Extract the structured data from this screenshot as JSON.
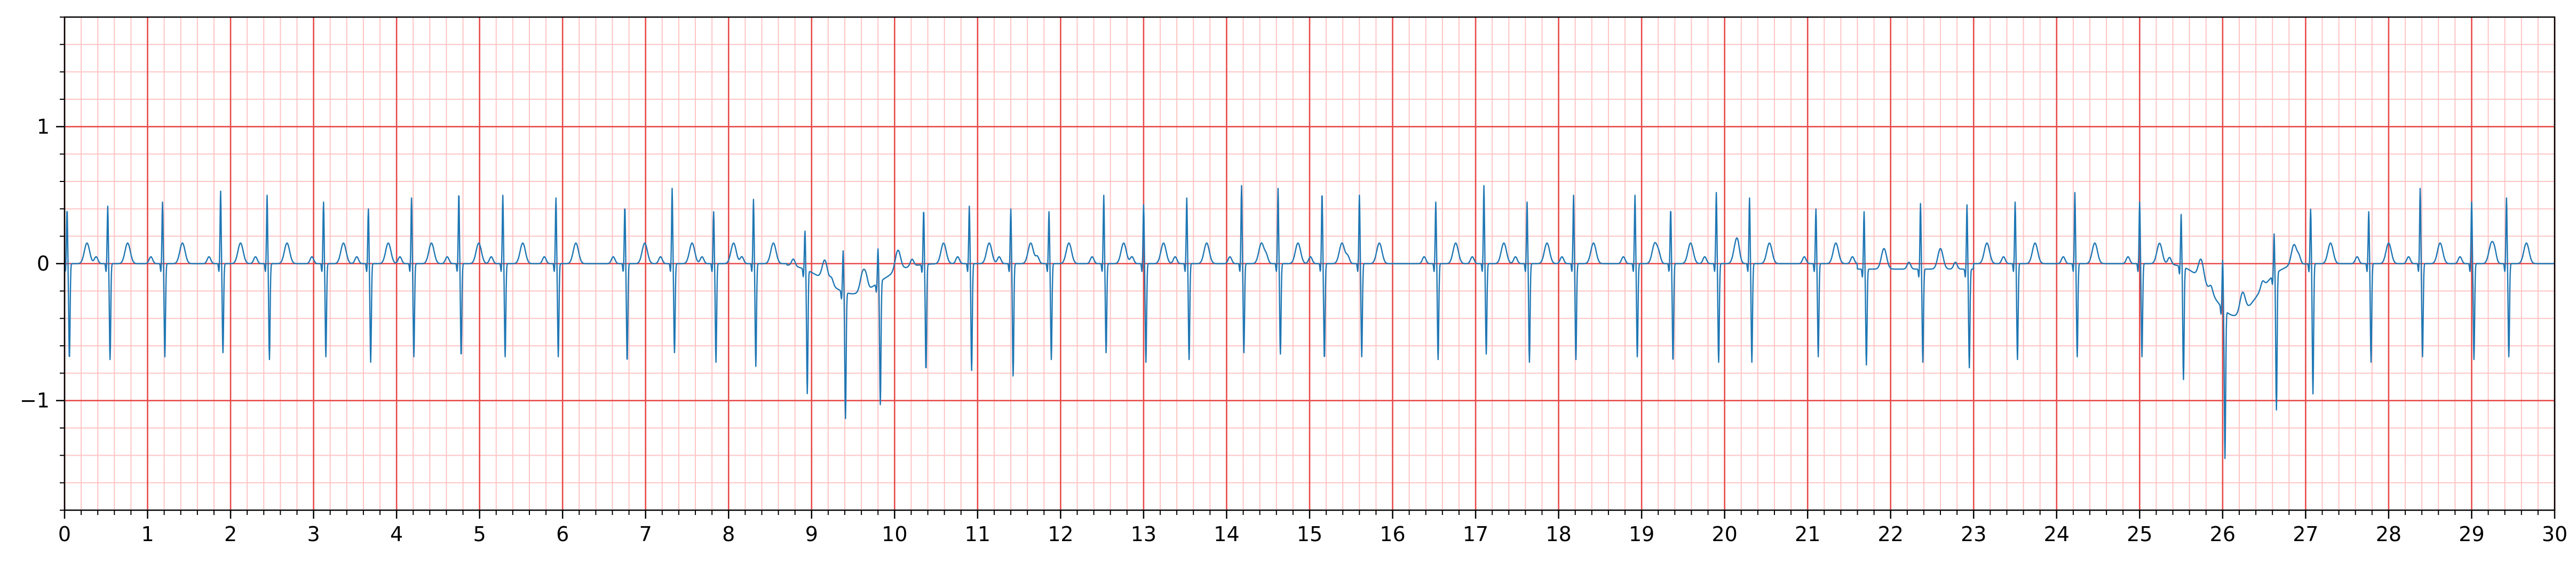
{
  "chart_data": {
    "type": "line",
    "title": "",
    "xlabel": "",
    "ylabel": "",
    "xlim": [
      0,
      30
    ],
    "ylim": [
      -1.8,
      1.8
    ],
    "grid": {
      "major_x_step": 1,
      "major_y_step": 1,
      "minor_x_step": 0.2,
      "minor_y_step": 0.2,
      "major_color": "#e84a4a",
      "minor_color": "#ffc4c4"
    },
    "x_ticks": [
      {
        "v": 0,
        "label": "0"
      },
      {
        "v": 1,
        "label": "1"
      },
      {
        "v": 2,
        "label": "2"
      },
      {
        "v": 3,
        "label": "3"
      },
      {
        "v": 4,
        "label": "4"
      },
      {
        "v": 5,
        "label": "5"
      },
      {
        "v": 6,
        "label": "6"
      },
      {
        "v": 7,
        "label": "7"
      },
      {
        "v": 8,
        "label": "8"
      },
      {
        "v": 9,
        "label": "9"
      },
      {
        "v": 10,
        "label": "10"
      },
      {
        "v": 11,
        "label": "11"
      },
      {
        "v": 12,
        "label": "12"
      },
      {
        "v": 13,
        "label": "13"
      },
      {
        "v": 14,
        "label": "14"
      },
      {
        "v": 15,
        "label": "15"
      },
      {
        "v": 16,
        "label": "16"
      },
      {
        "v": 17,
        "label": "17"
      },
      {
        "v": 18,
        "label": "18"
      },
      {
        "v": 19,
        "label": "19"
      },
      {
        "v": 20,
        "label": "20"
      },
      {
        "v": 21,
        "label": "21"
      },
      {
        "v": 22,
        "label": "22"
      },
      {
        "v": 23,
        "label": "23"
      },
      {
        "v": 24,
        "label": "24"
      },
      {
        "v": 25,
        "label": "25"
      },
      {
        "v": 26,
        "label": "26"
      },
      {
        "v": 27,
        "label": "27"
      },
      {
        "v": 28,
        "label": "28"
      },
      {
        "v": 29,
        "label": "29"
      },
      {
        "v": 30,
        "label": "30"
      }
    ],
    "y_ticks": [
      {
        "v": 1,
        "label": "1"
      },
      {
        "v": 0,
        "label": "0"
      },
      {
        "v": -1,
        "label": "−1"
      }
    ],
    "series": [
      {
        "color": "#1f77b4",
        "beats": [
          [
            0.03,
            0.4,
            -0.7
          ],
          [
            0.52,
            0.42,
            -0.7
          ],
          [
            1.18,
            0.45,
            -0.68
          ],
          [
            1.88,
            0.53,
            -0.65
          ],
          [
            2.44,
            0.5,
            -0.7
          ],
          [
            3.12,
            0.45,
            -0.68
          ],
          [
            3.66,
            0.4,
            -0.72
          ],
          [
            4.18,
            0.48,
            -0.68
          ],
          [
            4.75,
            0.52,
            -0.68
          ],
          [
            5.28,
            0.5,
            -0.68
          ],
          [
            5.92,
            0.48,
            -0.68
          ],
          [
            6.75,
            0.42,
            -0.72
          ],
          [
            7.32,
            0.55,
            -0.65
          ],
          [
            7.82,
            0.38,
            -0.72
          ],
          [
            8.3,
            0.47,
            -0.75
          ],
          [
            8.92,
            0.28,
            -0.9
          ],
          [
            9.38,
            0.3,
            -0.92
          ],
          [
            9.8,
            0.25,
            -0.9
          ],
          [
            10.35,
            0.4,
            -0.78
          ],
          [
            10.9,
            0.42,
            -0.78
          ],
          [
            11.4,
            0.4,
            -0.82
          ],
          [
            11.86,
            0.38,
            -0.7
          ],
          [
            12.52,
            0.5,
            -0.65
          ],
          [
            13.0,
            0.43,
            -0.72
          ],
          [
            13.52,
            0.48,
            -0.7
          ],
          [
            14.18,
            0.57,
            -0.65
          ],
          [
            14.62,
            0.55,
            -0.66
          ],
          [
            15.15,
            0.52,
            -0.7
          ],
          [
            15.6,
            0.5,
            -0.68
          ],
          [
            16.52,
            0.45,
            -0.7
          ],
          [
            17.1,
            0.57,
            -0.66
          ],
          [
            17.62,
            0.45,
            -0.72
          ],
          [
            18.18,
            0.5,
            -0.7
          ],
          [
            18.92,
            0.5,
            -0.68
          ],
          [
            19.35,
            0.4,
            -0.72
          ],
          [
            19.9,
            0.52,
            -0.72
          ],
          [
            20.3,
            0.48,
            -0.72
          ],
          [
            21.1,
            0.4,
            -0.68
          ],
          [
            21.68,
            0.42,
            -0.7
          ],
          [
            22.36,
            0.48,
            -0.68
          ],
          [
            22.92,
            0.47,
            -0.72
          ],
          [
            23.5,
            0.45,
            -0.7
          ],
          [
            24.22,
            0.52,
            -0.68
          ],
          [
            25.0,
            0.45,
            -0.68
          ],
          [
            25.5,
            0.38,
            -0.82
          ],
          [
            26.0,
            0.35,
            -1.08
          ],
          [
            26.62,
            0.3,
            -1.0
          ],
          [
            27.06,
            0.4,
            -0.95
          ],
          [
            27.76,
            0.38,
            -0.72
          ],
          [
            28.38,
            0.55,
            -0.68
          ],
          [
            29.0,
            0.45,
            -0.7
          ],
          [
            29.42,
            0.48,
            -0.68
          ]
        ]
      }
    ]
  }
}
